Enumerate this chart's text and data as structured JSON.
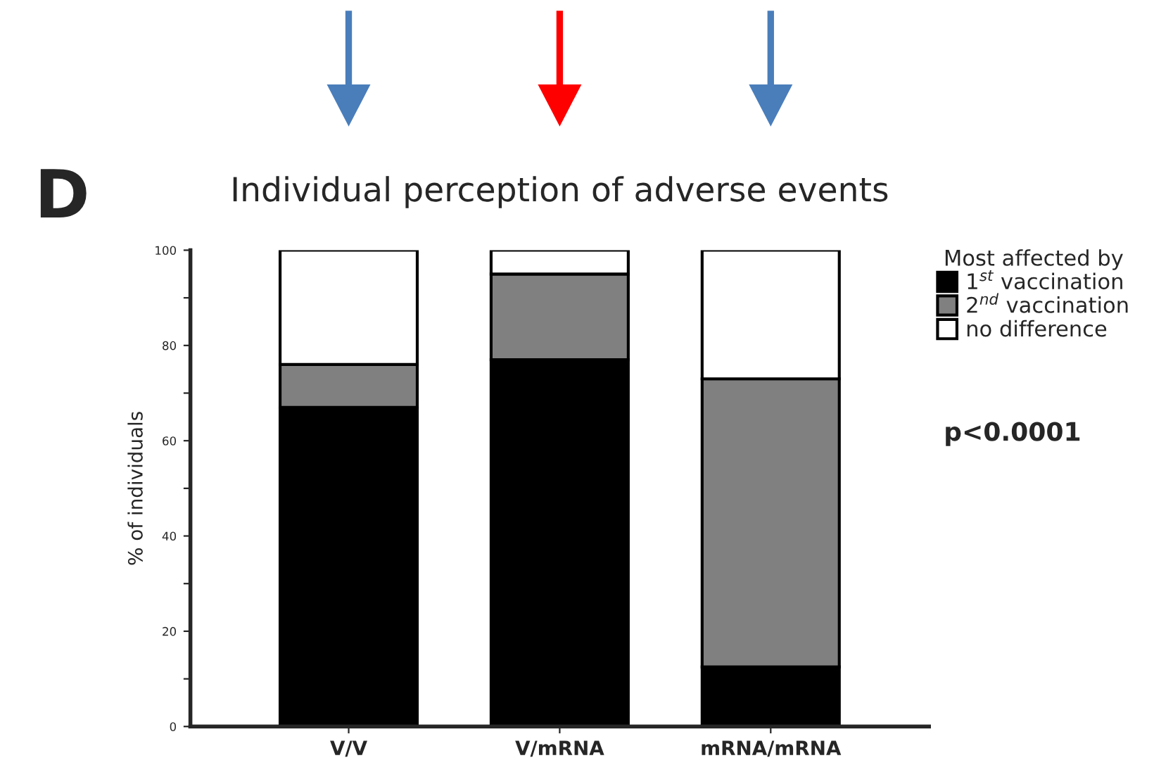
{
  "chart_data": {
    "type": "bar",
    "stacked": true,
    "title": "Individual perception of adverse events",
    "ylabel": "% of individuals",
    "legend_title": "Most affected by",
    "categories": [
      "V/V",
      "V/mRNA",
      "mRNA/mRNA"
    ],
    "series": [
      {
        "name": "1$^{st}$ vaccination",
        "color": "#000000",
        "values": [
          67,
          77,
          12.5
        ]
      },
      {
        "name": "2$^{nd}$ vaccination",
        "color": "#808080",
        "values": [
          9,
          18,
          60.5
        ]
      },
      {
        "name": "no difference",
        "color": "#ffffff",
        "values": [
          24,
          5,
          27
        ]
      }
    ],
    "ylim": [
      0,
      100
    ],
    "yticks": [
      0,
      {
        "value": 10,
        "label": null
      },
      20,
      {
        "value": 30,
        "label": null
      },
      40,
      {
        "value": 50,
        "label": null
      },
      60,
      {
        "value": 70,
        "label": null
      },
      80,
      {
        "value": 90,
        "label": null
      },
      100
    ],
    "annotations": [
      "D",
      "p<0.0001"
    ],
    "legend": "top right",
    "grid": false
  }
}
